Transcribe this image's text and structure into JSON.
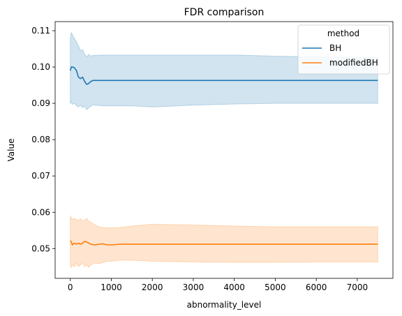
{
  "chart_data": {
    "type": "line",
    "title": "FDR comparison",
    "xlabel": "abnormality_level",
    "ylabel": "Value",
    "xlim": [
      -370,
      7870
    ],
    "ylim": [
      0.0418,
      0.1125
    ],
    "xticks": [
      0,
      1000,
      2000,
      3000,
      4000,
      5000,
      6000,
      7000
    ],
    "yticks": [
      0.05,
      0.06,
      0.07,
      0.08,
      0.09,
      0.1,
      0.11
    ],
    "xtick_labels": [
      "0",
      "1000",
      "2000",
      "3000",
      "4000",
      "5000",
      "6000",
      "7000"
    ],
    "ytick_labels": [
      "0.05",
      "0.06",
      "0.07",
      "0.08",
      "0.09",
      "0.10",
      "0.11"
    ],
    "grid": false,
    "legend": {
      "title": "method",
      "position": "top-right"
    },
    "series": [
      {
        "name": "BH",
        "color": "#1f77b4",
        "x": [
          0,
          25,
          50,
          100,
          150,
          200,
          250,
          300,
          350,
          400,
          450,
          500,
          550,
          600,
          800,
          1000,
          1500,
          2000,
          3000,
          4000,
          5000,
          6000,
          7000,
          7500
        ],
        "y": [
          0.099,
          0.1,
          0.1,
          0.0998,
          0.099,
          0.0972,
          0.0968,
          0.0972,
          0.096,
          0.0952,
          0.0955,
          0.096,
          0.0963,
          0.0963,
          0.0963,
          0.0963,
          0.0963,
          0.0963,
          0.0963,
          0.0963,
          0.0963,
          0.0963,
          0.0963,
          0.0963
        ],
        "lower": [
          0.0898,
          0.0905,
          0.0897,
          0.09,
          0.0893,
          0.089,
          0.0895,
          0.0888,
          0.0893,
          0.0882,
          0.0888,
          0.0892,
          0.0895,
          0.0895,
          0.0893,
          0.0893,
          0.0893,
          0.089,
          0.0895,
          0.0898,
          0.09,
          0.09,
          0.09,
          0.09
        ],
        "upper": [
          0.108,
          0.1095,
          0.109,
          0.1078,
          0.107,
          0.1058,
          0.1045,
          0.1048,
          0.1035,
          0.1028,
          0.1035,
          0.103,
          0.1032,
          0.1032,
          0.1033,
          0.1033,
          0.1033,
          0.1033,
          0.1033,
          0.1033,
          0.103,
          0.1028,
          0.1027,
          0.1026
        ]
      },
      {
        "name": "modifiedBH",
        "color": "#ff7f0e",
        "x": [
          0,
          25,
          50,
          100,
          150,
          200,
          250,
          300,
          350,
          400,
          450,
          500,
          600,
          700,
          800,
          900,
          1000,
          1200,
          1500,
          2000,
          3000,
          4000,
          5000,
          6000,
          7000,
          7500
        ],
        "y": [
          0.0522,
          0.0518,
          0.051,
          0.0515,
          0.0512,
          0.0515,
          0.0512,
          0.0515,
          0.052,
          0.0518,
          0.0515,
          0.0512,
          0.051,
          0.0512,
          0.0513,
          0.051,
          0.051,
          0.0512,
          0.0512,
          0.0512,
          0.0512,
          0.0512,
          0.0512,
          0.0512,
          0.0512,
          0.0512
        ],
        "lower": [
          0.0455,
          0.0448,
          0.0455,
          0.045,
          0.046,
          0.045,
          0.0455,
          0.046,
          0.045,
          0.0455,
          0.0448,
          0.0455,
          0.046,
          0.0458,
          0.0462,
          0.0465,
          0.0465,
          0.0468,
          0.0468,
          0.0465,
          0.0463,
          0.0462,
          0.0462,
          0.0463,
          0.0463,
          0.0463
        ],
        "upper": [
          0.059,
          0.0585,
          0.058,
          0.0583,
          0.058,
          0.0578,
          0.0582,
          0.0576,
          0.0578,
          0.0583,
          0.0575,
          0.0573,
          0.0565,
          0.056,
          0.0558,
          0.0557,
          0.0557,
          0.0558,
          0.0562,
          0.0567,
          0.0565,
          0.0562,
          0.056,
          0.056,
          0.056,
          0.056
        ]
      }
    ]
  }
}
